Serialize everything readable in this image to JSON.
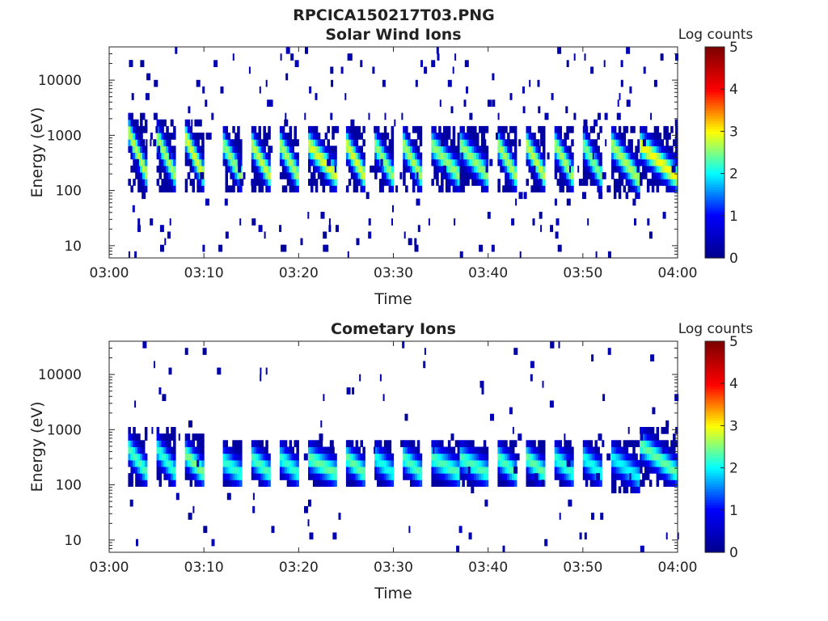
{
  "figure": {
    "title": "RPCICA150217T03.PNG"
  },
  "colormap": {
    "name": "jet",
    "stops": [
      "#00008f",
      "#0000ff",
      "#00ffff",
      "#ffff00",
      "#ff0000",
      "#800000"
    ],
    "missing_color": "#ffffff"
  },
  "chart_data": [
    {
      "type": "heatmap",
      "title": "Solar Wind Ions",
      "xlabel": "Time",
      "ylabel": "Energy (eV)",
      "x_ticks": [
        "03:00",
        "03:10",
        "03:20",
        "03:30",
        "03:40",
        "03:50",
        "04:00"
      ],
      "xlim": [
        "03:00",
        "04:00"
      ],
      "y_scale": "log",
      "y_ticks": [
        "10",
        "100",
        "1000",
        "10000"
      ],
      "ylim": [
        6,
        40000
      ],
      "colorbar": {
        "label": "Log counts",
        "range": [
          0,
          5
        ],
        "ticks": [
          "0",
          "1",
          "2",
          "3",
          "4",
          "5"
        ]
      },
      "sweeps": [
        {
          "start": "03:02",
          "end": "03:04",
          "peak_log_counts": 2.8,
          "energy_range_ev": [
            100,
            2500
          ]
        },
        {
          "start": "03:05",
          "end": "03:07",
          "peak_log_counts": 2.7,
          "energy_range_ev": [
            100,
            2000
          ]
        },
        {
          "start": "03:08",
          "end": "03:10",
          "peak_log_counts": 2.9,
          "energy_range_ev": [
            100,
            2000
          ]
        },
        {
          "start": "03:12",
          "end": "03:14",
          "peak_log_counts": 2.6,
          "energy_range_ev": [
            100,
            1500
          ]
        },
        {
          "start": "03:15",
          "end": "03:17",
          "peak_log_counts": 2.8,
          "energy_range_ev": [
            100,
            1500
          ]
        },
        {
          "start": "03:18",
          "end": "03:20",
          "peak_log_counts": 2.7,
          "energy_range_ev": [
            100,
            1500
          ]
        },
        {
          "start": "03:21",
          "end": "03:24",
          "peak_log_counts": 2.9,
          "energy_range_ev": [
            100,
            1500
          ]
        },
        {
          "start": "03:25",
          "end": "03:27",
          "peak_log_counts": 2.9,
          "energy_range_ev": [
            100,
            1500
          ]
        },
        {
          "start": "03:28",
          "end": "03:30",
          "peak_log_counts": 2.6,
          "energy_range_ev": [
            100,
            1500
          ]
        },
        {
          "start": "03:31",
          "end": "03:33",
          "peak_log_counts": 2.7,
          "energy_range_ev": [
            100,
            1500
          ]
        },
        {
          "start": "03:34",
          "end": "03:37",
          "peak_log_counts": 2.6,
          "energy_range_ev": [
            100,
            1500
          ]
        },
        {
          "start": "03:37",
          "end": "03:40",
          "peak_log_counts": 2.6,
          "energy_range_ev": [
            100,
            1500
          ]
        },
        {
          "start": "03:41",
          "end": "03:43",
          "peak_log_counts": 2.7,
          "energy_range_ev": [
            100,
            1500
          ]
        },
        {
          "start": "03:44",
          "end": "03:46",
          "peak_log_counts": 2.8,
          "energy_range_ev": [
            100,
            1500
          ]
        },
        {
          "start": "03:47",
          "end": "03:49",
          "peak_log_counts": 2.7,
          "energy_range_ev": [
            100,
            1500
          ]
        },
        {
          "start": "03:50",
          "end": "03:52",
          "peak_log_counts": 2.5,
          "energy_range_ev": [
            100,
            1500
          ]
        },
        {
          "start": "03:53",
          "end": "03:56",
          "peak_log_counts": 2.7,
          "energy_range_ev": [
            80,
            1500
          ]
        },
        {
          "start": "03:56",
          "end": "04:00",
          "peak_log_counts": 3.0,
          "energy_range_ev": [
            90,
            1500
          ]
        }
      ]
    },
    {
      "type": "heatmap",
      "title": "Cometary Ions",
      "xlabel": "Time",
      "ylabel": "Energy (eV)",
      "x_ticks": [
        "03:00",
        "03:10",
        "03:20",
        "03:30",
        "03:40",
        "03:50",
        "04:00"
      ],
      "xlim": [
        "03:00",
        "04:00"
      ],
      "y_scale": "log",
      "y_ticks": [
        "10",
        "100",
        "1000",
        "10000"
      ],
      "ylim": [
        6,
        40000
      ],
      "colorbar": {
        "label": "Log counts",
        "range": [
          0,
          5
        ],
        "ticks": [
          "0",
          "1",
          "2",
          "3",
          "4",
          "5"
        ]
      },
      "sweeps": [
        {
          "start": "03:02",
          "end": "03:04",
          "peak_log_counts": 2.3,
          "energy_range_ev": [
            100,
            1000
          ]
        },
        {
          "start": "03:05",
          "end": "03:07",
          "peak_log_counts": 2.2,
          "energy_range_ev": [
            100,
            1000
          ]
        },
        {
          "start": "03:08",
          "end": "03:10",
          "peak_log_counts": 2.5,
          "energy_range_ev": [
            100,
            800
          ]
        },
        {
          "start": "03:12",
          "end": "03:14",
          "peak_log_counts": 2.2,
          "energy_range_ev": [
            100,
            600
          ]
        },
        {
          "start": "03:15",
          "end": "03:17",
          "peak_log_counts": 2.3,
          "energy_range_ev": [
            100,
            700
          ]
        },
        {
          "start": "03:18",
          "end": "03:20",
          "peak_log_counts": 2.2,
          "energy_range_ev": [
            100,
            700
          ]
        },
        {
          "start": "03:21",
          "end": "03:24",
          "peak_log_counts": 2.4,
          "energy_range_ev": [
            100,
            700
          ]
        },
        {
          "start": "03:25",
          "end": "03:27",
          "peak_log_counts": 2.4,
          "energy_range_ev": [
            100,
            700
          ]
        },
        {
          "start": "03:28",
          "end": "03:30",
          "peak_log_counts": 2.1,
          "energy_range_ev": [
            100,
            700
          ]
        },
        {
          "start": "03:31",
          "end": "03:33",
          "peak_log_counts": 2.3,
          "energy_range_ev": [
            100,
            700
          ]
        },
        {
          "start": "03:34",
          "end": "03:37",
          "peak_log_counts": 2.3,
          "energy_range_ev": [
            100,
            700
          ]
        },
        {
          "start": "03:37",
          "end": "03:40",
          "peak_log_counts": 2.3,
          "energy_range_ev": [
            100,
            700
          ]
        },
        {
          "start": "03:41",
          "end": "03:43",
          "peak_log_counts": 2.3,
          "energy_range_ev": [
            100,
            700
          ]
        },
        {
          "start": "03:44",
          "end": "03:46",
          "peak_log_counts": 2.4,
          "energy_range_ev": [
            100,
            700
          ]
        },
        {
          "start": "03:47",
          "end": "03:49",
          "peak_log_counts": 2.2,
          "energy_range_ev": [
            100,
            700
          ]
        },
        {
          "start": "03:50",
          "end": "03:52",
          "peak_log_counts": 2.1,
          "energy_range_ev": [
            100,
            700
          ]
        },
        {
          "start": "03:53",
          "end": "03:56",
          "peak_log_counts": 2.0,
          "energy_range_ev": [
            80,
            700
          ]
        },
        {
          "start": "03:56",
          "end": "04:00",
          "peak_log_counts": 2.4,
          "energy_range_ev": [
            90,
            1200
          ]
        }
      ]
    }
  ]
}
